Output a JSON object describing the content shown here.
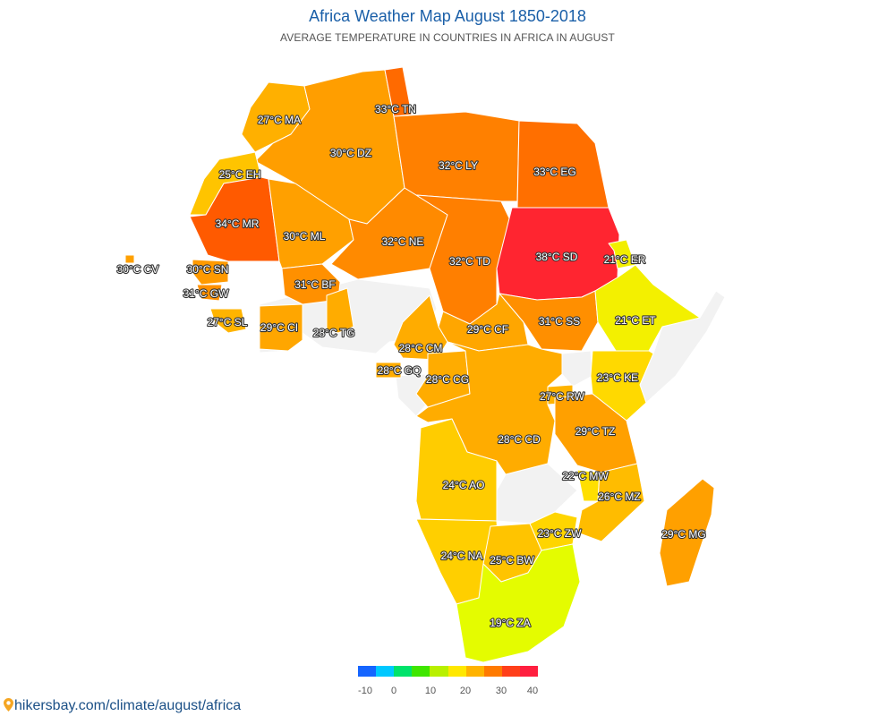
{
  "header": {
    "title": "Africa Weather Map August 1850-2018",
    "subtitle": "AVERAGE TEMPERATURE IN COUNTRIES IN AFRICA IN AUGUST"
  },
  "map": {
    "no_data_color": "#f2f2f2",
    "countries": [
      {
        "code": "MA",
        "label": "27°C MA",
        "temp": 27,
        "color": "#ffb000"
      },
      {
        "code": "DZ",
        "label": "30°C DZ",
        "temp": 30,
        "color": "#ff9e00"
      },
      {
        "code": "TN",
        "label": "33°C TN",
        "temp": 33,
        "color": "#ff6a00"
      },
      {
        "code": "LY",
        "label": "32°C LY",
        "temp": 32,
        "color": "#ff8000"
      },
      {
        "code": "EG",
        "label": "33°C EG",
        "temp": 33,
        "color": "#ff6f00"
      },
      {
        "code": "EH",
        "label": "25°C EH",
        "temp": 25,
        "color": "#ffc400"
      },
      {
        "code": "MR",
        "label": "34°C MR",
        "temp": 34,
        "color": "#ff5a00"
      },
      {
        "code": "ML",
        "label": "30°C ML",
        "temp": 30,
        "color": "#ffa000"
      },
      {
        "code": "NE",
        "label": "32°C NE",
        "temp": 32,
        "color": "#ff8a00"
      },
      {
        "code": "TD",
        "label": "32°C TD",
        "temp": 32,
        "color": "#ff7f00"
      },
      {
        "code": "SD",
        "label": "38°C SD",
        "temp": 38,
        "color": "#ff2530"
      },
      {
        "code": "CV",
        "label": "30°C CV",
        "temp": 30,
        "color": "#ffa000"
      },
      {
        "code": "SN",
        "label": "30°C SN",
        "temp": 30,
        "color": "#ff9a00"
      },
      {
        "code": "GW",
        "label": "31°C GW",
        "temp": 31,
        "color": "#ff9000"
      },
      {
        "code": "BF",
        "label": "31°C BF",
        "temp": 31,
        "color": "#ff9000"
      },
      {
        "code": "SL",
        "label": "27°C SL",
        "temp": 27,
        "color": "#ffb400"
      },
      {
        "code": "CI",
        "label": "29°C CI",
        "temp": 29,
        "color": "#ffa600"
      },
      {
        "code": "TG",
        "label": "28°C TG",
        "temp": 28,
        "color": "#ffac00"
      },
      {
        "code": "CM",
        "label": "28°C CM",
        "temp": 28,
        "color": "#ffac00"
      },
      {
        "code": "CF",
        "label": "29°C CF",
        "temp": 29,
        "color": "#ffa600"
      },
      {
        "code": "SS",
        "label": "31°C SS",
        "temp": 31,
        "color": "#ff8f00"
      },
      {
        "code": "ER",
        "label": "21°C ER",
        "temp": 21,
        "color": "#f2ee00"
      },
      {
        "code": "ET",
        "label": "21°C ET",
        "temp": 21,
        "color": "#f3f000"
      },
      {
        "code": "GQ",
        "label": "28°C GQ",
        "temp": 28,
        "color": "#ffac00"
      },
      {
        "code": "CG",
        "label": "28°C CG",
        "temp": 28,
        "color": "#ffac00"
      },
      {
        "code": "KE",
        "label": "23°C KE",
        "temp": 23,
        "color": "#ffd900"
      },
      {
        "code": "RW",
        "label": "27°C RW",
        "temp": 27,
        "color": "#ffb400"
      },
      {
        "code": "CD",
        "label": "28°C CD",
        "temp": 28,
        "color": "#ffac00"
      },
      {
        "code": "TZ",
        "label": "29°C TZ",
        "temp": 29,
        "color": "#ffa000"
      },
      {
        "code": "MW",
        "label": "22°C MW",
        "temp": 22,
        "color": "#ffdf00"
      },
      {
        "code": "AO",
        "label": "24°C AO",
        "temp": 24,
        "color": "#ffcc00"
      },
      {
        "code": "MZ",
        "label": "26°C MZ",
        "temp": 26,
        "color": "#ffbc00"
      },
      {
        "code": "ZW",
        "label": "23°C ZW",
        "temp": 23,
        "color": "#ffd500"
      },
      {
        "code": "MG",
        "label": "29°C MG",
        "temp": 29,
        "color": "#ffa000"
      },
      {
        "code": "NA",
        "label": "24°C NA",
        "temp": 24,
        "color": "#ffcf00"
      },
      {
        "code": "BW",
        "label": "25°C BW",
        "temp": 25,
        "color": "#ffc400"
      },
      {
        "code": "ZA",
        "label": "19°C ZA",
        "temp": 19,
        "color": "#e4fc00"
      }
    ]
  },
  "legend": {
    "ticks": [
      "-10",
      "0",
      "10",
      "20",
      "30",
      "40"
    ],
    "colors": [
      "#1565ff",
      "#00c8ff",
      "#00e36b",
      "#3fe600",
      "#b8f000",
      "#ffe800",
      "#ffb300",
      "#ff7a00",
      "#ff3f1a",
      "#ff1f3f"
    ]
  },
  "footer": {
    "link_text": "hikersbay.com/climate/august/africa"
  }
}
